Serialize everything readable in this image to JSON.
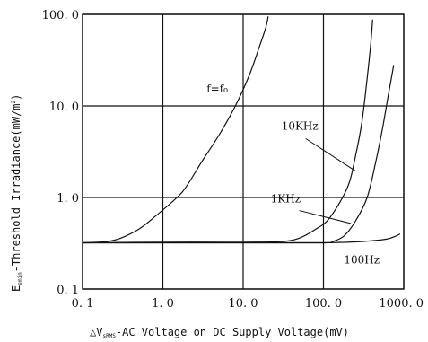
{
  "chart_data": {
    "type": "line",
    "x_scale": "log",
    "y_scale": "log",
    "xlim": [
      0.1,
      1000
    ],
    "ylim": [
      0.1,
      100
    ],
    "grid": true,
    "x_ticks": [
      {
        "value": 0.1,
        "label": "0. 1"
      },
      {
        "value": 1,
        "label": "1. 0"
      },
      {
        "value": 10,
        "label": "10. 0"
      },
      {
        "value": 100,
        "label": "100. 0"
      },
      {
        "value": 1000,
        "label": "1000. 0"
      }
    ],
    "y_ticks": [
      {
        "value": 0.1,
        "label": "0. 1"
      },
      {
        "value": 1,
        "label": "1. 0"
      },
      {
        "value": 10,
        "label": "10. 0"
      },
      {
        "value": 100,
        "label": "100. 0"
      }
    ],
    "xlabel": {
      "prefix": "△V",
      "sub": "sRMS",
      "rest": "-AC Voltage on DC  Supply Voltage(mV)"
    },
    "ylabel": {
      "prefix": "E",
      "sub": "emin",
      "rest": "-Threshold Irradiance(mW/m",
      "sup": "2",
      "close": ")"
    },
    "series": [
      {
        "name": "f=f₀",
        "points": [
          [
            0.1,
            0.32
          ],
          [
            0.2,
            0.33
          ],
          [
            0.3,
            0.36
          ],
          [
            0.5,
            0.45
          ],
          [
            0.8,
            0.62
          ],
          [
            1.5,
            1.0
          ],
          [
            2.0,
            1.35
          ],
          [
            3.0,
            2.4
          ],
          [
            5.0,
            4.8
          ],
          [
            8.0,
            10.0
          ],
          [
            12.0,
            22.0
          ],
          [
            16.0,
            45.0
          ],
          [
            19.0,
            70.0
          ],
          [
            20.5,
            95.0
          ]
        ]
      },
      {
        "name": "10KHz",
        "points": [
          [
            0.1,
            0.32
          ],
          [
            1,
            0.325
          ],
          [
            10,
            0.325
          ],
          [
            30,
            0.33
          ],
          [
            50,
            0.36
          ],
          [
            80,
            0.45
          ],
          [
            120,
            0.6
          ],
          [
            200,
            1.3
          ],
          [
            250,
            2.8
          ],
          [
            300,
            6.5
          ],
          [
            350,
            20
          ],
          [
            390,
            50
          ],
          [
            410,
            88
          ]
        ]
      },
      {
        "name": "1KHz",
        "points": [
          [
            0.1,
            0.32
          ],
          [
            10,
            0.32
          ],
          [
            100,
            0.32
          ],
          [
            130,
            0.33
          ],
          [
            180,
            0.38
          ],
          [
            250,
            0.55
          ],
          [
            350,
            1.0
          ],
          [
            450,
            2.5
          ],
          [
            550,
            6.0
          ],
          [
            650,
            14
          ],
          [
            750,
            28
          ]
        ]
      },
      {
        "name": "100Hz",
        "points": [
          [
            0.1,
            0.32
          ],
          [
            10,
            0.32
          ],
          [
            100,
            0.32
          ],
          [
            300,
            0.33
          ],
          [
            600,
            0.35
          ],
          [
            800,
            0.38
          ],
          [
            900,
            0.4
          ]
        ]
      }
    ],
    "labels": [
      {
        "text": "f=f₀",
        "x": 3.5,
        "y": 14
      },
      {
        "text": "10KHz",
        "x": 30,
        "y": 5.5
      },
      {
        "text": "1KHz",
        "x": 22,
        "y": 0.88
      },
      {
        "text": "100Hz",
        "x": 180,
        "y": 0.19
      }
    ],
    "leaders": [
      {
        "from": [
          60,
          4.4
        ],
        "to": [
          250,
          1.95
        ]
      },
      {
        "from": [
          50,
          0.72
        ],
        "to": [
          220,
          0.52
        ]
      }
    ]
  }
}
